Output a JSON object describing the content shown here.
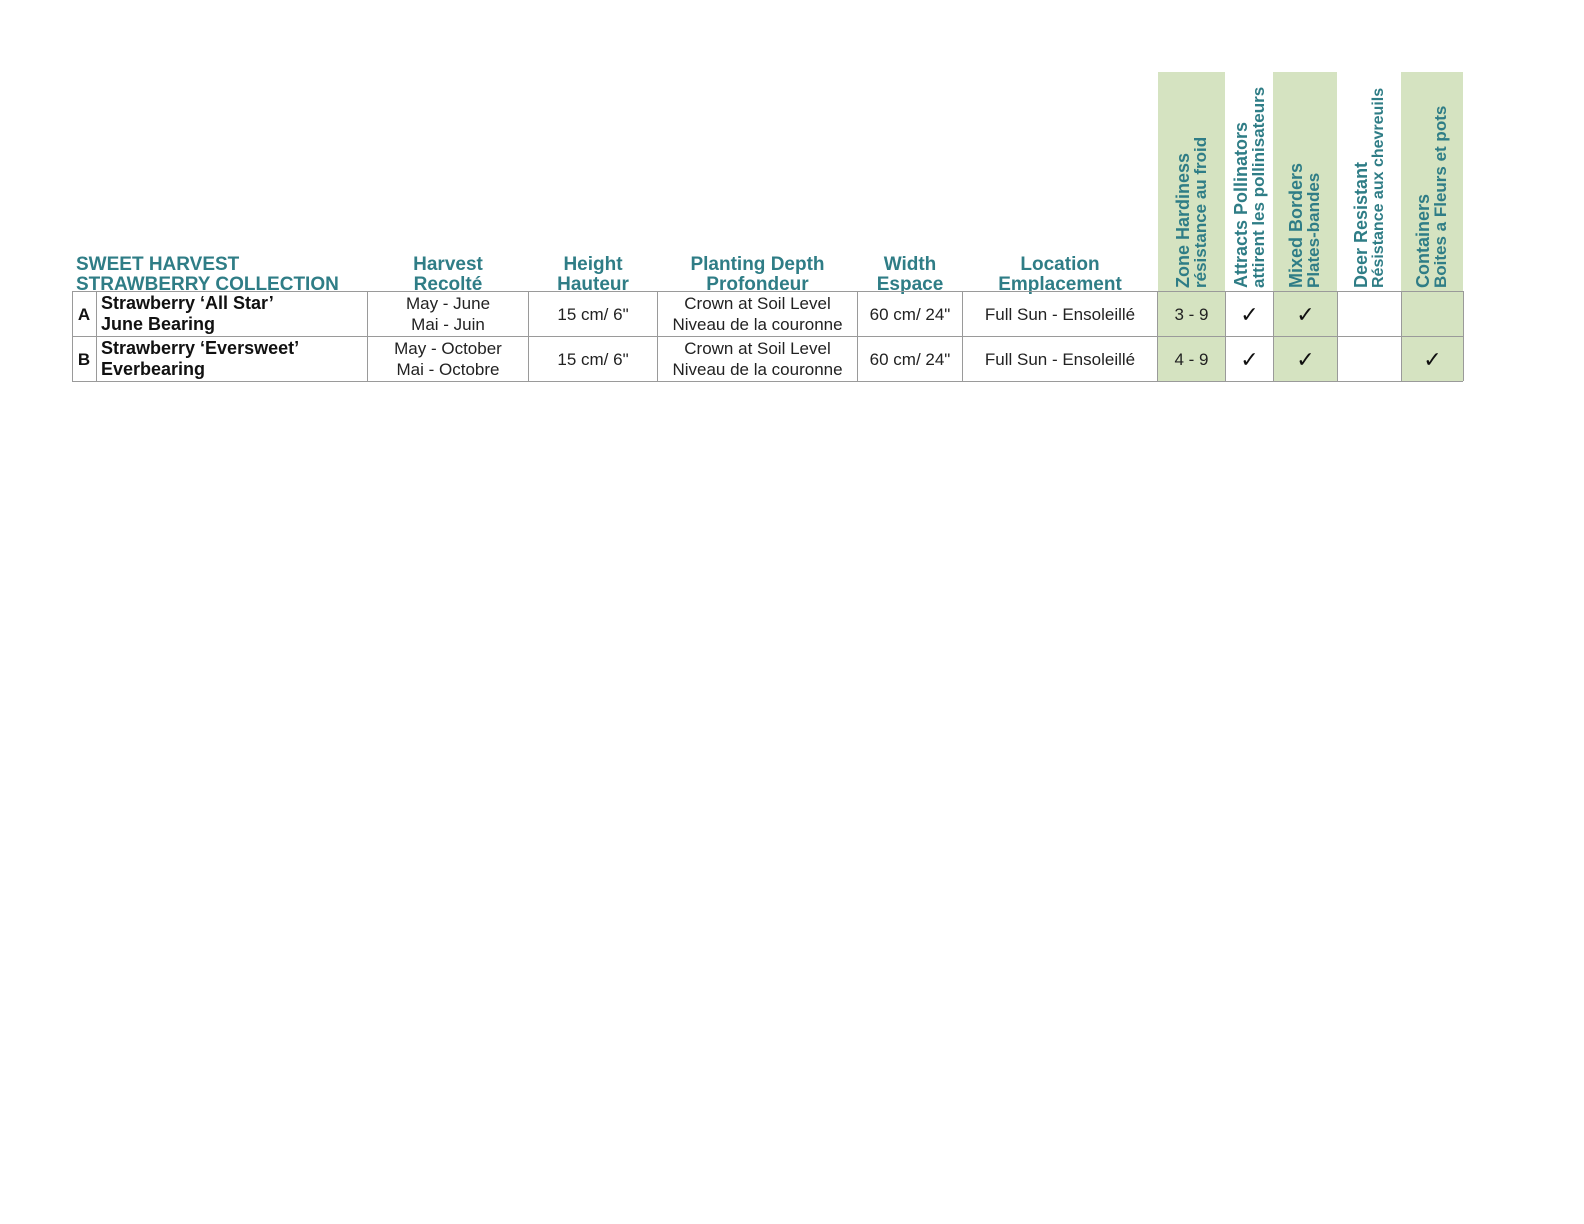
{
  "title": {
    "line1": "SWEET HARVEST",
    "line2": "STRAWBERRY COLLECTION"
  },
  "columns": {
    "harvest": {
      "en": "Harvest",
      "fr": "Recolté"
    },
    "height": {
      "en": "Height",
      "fr": "Hauteur"
    },
    "depth": {
      "en": "Planting Depth",
      "fr": "Profondeur"
    },
    "width": {
      "en": "Width",
      "fr": "Espace"
    },
    "location": {
      "en": "Location",
      "fr": "Emplacement"
    },
    "zone": {
      "en": "Zone Hardiness",
      "fr": "résistance au froid"
    },
    "pollinators": {
      "en": "Attracts Pollinators",
      "fr": "attirent les pollinisateurs"
    },
    "borders": {
      "en": "Mixed Borders",
      "fr": "Plates-bandes"
    },
    "deer": {
      "en": "Deer Resistant",
      "fr": "Résistance aux chevreuils"
    },
    "containers": {
      "en": "Containers",
      "fr": "Boites a Fleurs et pots"
    }
  },
  "rows": [
    {
      "letter": "A",
      "name": "Strawberry ‘All Star’",
      "type": "June Bearing",
      "harvest_en": "May - June",
      "harvest_fr": "Mai - Juin",
      "height": "15 cm/ 6\"",
      "depth_en": "Crown at Soil Level",
      "depth_fr": "Niveau de la couronne",
      "width": "60 cm/ 24\"",
      "location": "Full Sun - Ensoleillé",
      "zone": "3 - 9",
      "pollinators": "✓",
      "borders": "✓",
      "deer": "",
      "containers": ""
    },
    {
      "letter": "B",
      "name": "Strawberry ‘Eversweet’",
      "type": "Everbearing",
      "harvest_en": "May - October",
      "harvest_fr": "Mai - Octobre",
      "height": "15 cm/ 6\"",
      "depth_en": "Crown at Soil Level",
      "depth_fr": "Niveau de la couronne",
      "width": "60 cm/ 24\"",
      "location": "Full Sun - Ensoleillé",
      "zone": "4 - 9",
      "pollinators": "✓",
      "borders": "✓",
      "deer": "",
      "containers": "✓"
    }
  ],
  "colors": {
    "heading": "#2f7d86",
    "highlight": "#d5e3c1",
    "grid": "#9a9a9a"
  }
}
